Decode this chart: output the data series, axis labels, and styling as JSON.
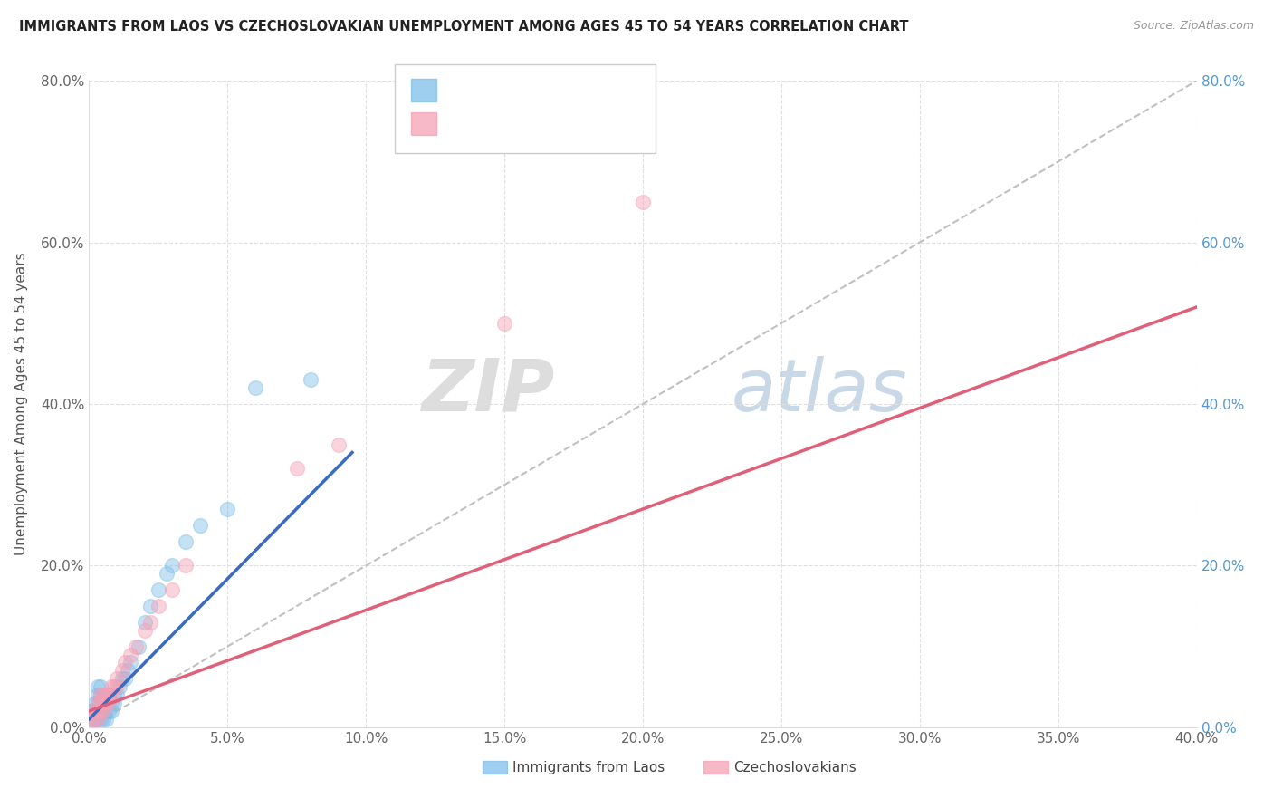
{
  "title": "IMMIGRANTS FROM LAOS VS CZECHOSLOVAKIAN UNEMPLOYMENT AMONG AGES 45 TO 54 YEARS CORRELATION CHART",
  "source": "Source: ZipAtlas.com",
  "ylabel_label": "Unemployment Among Ages 45 to 54 years",
  "legend_label1": "Immigrants from Laos",
  "legend_label2": "Czechoslovakians",
  "blue_color": "#7fbfea",
  "pink_color": "#f5a0b5",
  "blue_line_color": "#3a6bbf",
  "pink_line_color": "#e0607a",
  "ref_line_color": "#c0c0c0",
  "background_color": "#ffffff",
  "xlim": [
    0.0,
    0.4
  ],
  "ylim": [
    0.0,
    0.8
  ],
  "yticks": [
    0.0,
    0.2,
    0.4,
    0.6,
    0.8
  ],
  "xticks": [
    0.0,
    0.05,
    0.1,
    0.15,
    0.2,
    0.25,
    0.3,
    0.35,
    0.4
  ],
  "blue_x": [
    0.0005,
    0.001,
    0.001,
    0.0015,
    0.002,
    0.002,
    0.002,
    0.0025,
    0.003,
    0.003,
    0.003,
    0.003,
    0.003,
    0.003,
    0.004,
    0.004,
    0.004,
    0.004,
    0.004,
    0.004,
    0.005,
    0.005,
    0.005,
    0.005,
    0.005,
    0.006,
    0.006,
    0.006,
    0.007,
    0.007,
    0.007,
    0.008,
    0.008,
    0.009,
    0.009,
    0.01,
    0.011,
    0.012,
    0.013,
    0.014,
    0.015,
    0.018,
    0.02,
    0.022,
    0.025,
    0.028,
    0.03,
    0.035,
    0.04,
    0.05,
    0.06,
    0.08
  ],
  "blue_y": [
    0.02,
    0.01,
    0.02,
    0.01,
    0.01,
    0.02,
    0.03,
    0.01,
    0.01,
    0.02,
    0.02,
    0.03,
    0.04,
    0.05,
    0.01,
    0.02,
    0.02,
    0.03,
    0.04,
    0.05,
    0.01,
    0.02,
    0.02,
    0.03,
    0.04,
    0.01,
    0.02,
    0.03,
    0.02,
    0.03,
    0.04,
    0.02,
    0.03,
    0.03,
    0.04,
    0.04,
    0.05,
    0.06,
    0.06,
    0.07,
    0.08,
    0.1,
    0.13,
    0.15,
    0.17,
    0.19,
    0.2,
    0.23,
    0.25,
    0.27,
    0.42,
    0.43
  ],
  "pink_x": [
    0.001,
    0.002,
    0.002,
    0.003,
    0.003,
    0.003,
    0.004,
    0.004,
    0.004,
    0.005,
    0.005,
    0.005,
    0.006,
    0.006,
    0.007,
    0.007,
    0.008,
    0.008,
    0.009,
    0.01,
    0.01,
    0.012,
    0.013,
    0.015,
    0.017,
    0.02,
    0.022,
    0.025,
    0.03,
    0.035,
    0.075,
    0.09,
    0.15,
    0.2
  ],
  "pink_y": [
    0.01,
    0.01,
    0.02,
    0.01,
    0.02,
    0.03,
    0.02,
    0.03,
    0.04,
    0.02,
    0.03,
    0.04,
    0.03,
    0.04,
    0.03,
    0.04,
    0.04,
    0.05,
    0.05,
    0.05,
    0.06,
    0.07,
    0.08,
    0.09,
    0.1,
    0.12,
    0.13,
    0.15,
    0.17,
    0.2,
    0.32,
    0.35,
    0.5,
    0.65
  ],
  "marker_size": 130,
  "marker_alpha": 0.45
}
